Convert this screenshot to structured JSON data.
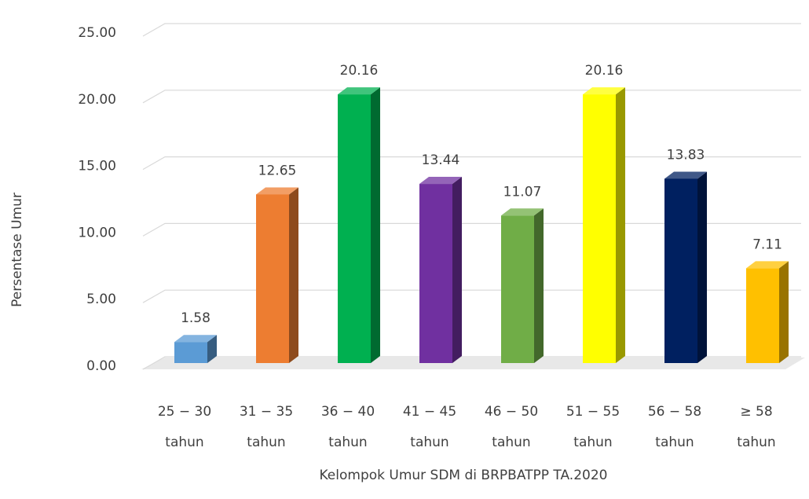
{
  "chart_data": {
    "type": "bar3d",
    "categories": [
      [
        "25 − 30",
        "tahun"
      ],
      [
        "31 − 35",
        "tahun"
      ],
      [
        "36 − 40",
        "tahun"
      ],
      [
        "41 − 45",
        "tahun"
      ],
      [
        "46 − 50",
        "tahun"
      ],
      [
        "51 − 55",
        "tahun"
      ],
      [
        "56 − 58",
        "tahun"
      ],
      [
        "≥ 58",
        "tahun"
      ]
    ],
    "values": [
      1.58,
      12.65,
      20.16,
      13.44,
      11.07,
      20.16,
      13.83,
      7.11
    ],
    "colors": [
      "#5b9bd5",
      "#ed7d31",
      "#00b050",
      "#7030a0",
      "#70ad47",
      "#ffff00",
      "#002060",
      "#ffc000"
    ],
    "ylim": [
      0,
      25
    ],
    "yticks": [
      {
        "value": 0,
        "label": "0.00"
      },
      {
        "value": 5,
        "label": "5.00"
      },
      {
        "value": 10,
        "label": "10.00"
      },
      {
        "value": 15,
        "label": "15.00"
      },
      {
        "value": 20,
        "label": "20.00"
      },
      {
        "value": 25,
        "label": "25.00"
      }
    ],
    "ylabel": "Persentase Umur",
    "xlabel": "Kelompok Umur SDM di BRPBATPP TA.2020",
    "grid": true
  }
}
